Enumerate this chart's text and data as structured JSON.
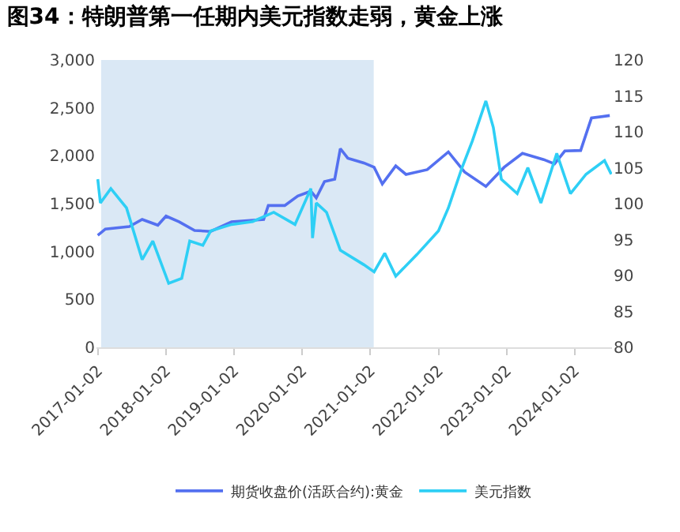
{
  "chart_data": {
    "type": "line",
    "title": "图34：特朗普第一任期内美元指数走弱，黄金上涨",
    "xlim": [
      "2016-12-26",
      "2024-07-20"
    ],
    "xticks": [
      {
        "value": "2017-01-02",
        "label": "2017-01-02"
      },
      {
        "value": "2018-01-02",
        "label": "2018-01-02"
      },
      {
        "value": "2019-01-02",
        "label": "2019-01-02"
      },
      {
        "value": "2020-01-02",
        "label": "2020-01-02"
      },
      {
        "value": "2021-01-02",
        "label": "2021-01-02"
      },
      {
        "value": "2022-01-02",
        "label": "2022-01-02"
      },
      {
        "value": "2023-01-02",
        "label": "2023-01-02"
      },
      {
        "value": "2024-01-02",
        "label": "2024-01-02"
      }
    ],
    "ylim": [
      0,
      3000
    ],
    "yticks": [
      0,
      500,
      {
        "value": 1000,
        "label": "1,000"
      },
      {
        "value": 1500,
        "label": "1,500"
      },
      {
        "value": 2000,
        "label": "2,000"
      },
      {
        "value": 2500,
        "label": "2,500"
      },
      {
        "value": 3000,
        "label": "3,000"
      }
    ],
    "y2lim": [
      80,
      120
    ],
    "y2ticks": [
      80,
      85,
      90,
      95,
      100,
      105,
      110,
      115,
      120
    ],
    "grid": false,
    "legend": "bottom",
    "marker": "none",
    "line_style": "solid",
    "bands": [
      {
        "axis": "x",
        "from": "2017-01-20",
        "to": "2021-01-20",
        "color": "#dae8f5"
      }
    ],
    "series": [
      {
        "name": "期货收盘价(活跃合约):黄金",
        "color": "#5470f0",
        "x": [
          "2017-01-02",
          "2017-02-12",
          "2017-06-20",
          "2017-08-28",
          "2017-11-20",
          "2018-01-03",
          "2018-03-15",
          "2018-06-05",
          "2018-08-30",
          "2018-12-20",
          "2019-06-10",
          "2019-07-05",
          "2019-10-01",
          "2019-12-10",
          "2020-02-18",
          "2020-03-18",
          "2020-05-01",
          "2020-06-25",
          "2020-07-25",
          "2020-09-03",
          "2020-11-28",
          "2021-01-22",
          "2021-03-07",
          "2021-05-18",
          "2021-07-12",
          "2021-11-03",
          "2022-02-24",
          "2022-05-22",
          "2022-09-13",
          "2022-12-20",
          "2023-03-28",
          "2023-07-20",
          "2023-09-16",
          "2023-11-10",
          "2024-02-03",
          "2024-04-01",
          "2024-07-08"
        ],
        "values": [
          1170,
          1235,
          1260,
          1335,
          1275,
          1370,
          1310,
          1220,
          1210,
          1310,
          1335,
          1480,
          1480,
          1580,
          1630,
          1560,
          1730,
          1755,
          2075,
          1975,
          1925,
          1880,
          1705,
          1895,
          1805,
          1855,
          2040,
          1830,
          1680,
          1880,
          2025,
          1960,
          1915,
          2050,
          2055,
          2395,
          2420
        ]
      },
      {
        "name": "美元指数",
        "color": "#2ecff5",
        "axis": "y2",
        "x": [
          "2017-01-02",
          "2017-01-16",
          "2017-03-13",
          "2017-06-05",
          "2017-08-28",
          "2017-10-24",
          "2018-01-17",
          "2018-03-28",
          "2018-05-10",
          "2018-07-19",
          "2018-08-30",
          "2018-12-20",
          "2019-04-12",
          "2019-08-03",
          "2019-11-25",
          "2020-02-18",
          "2020-02-27",
          "2020-03-18",
          "2020-05-12",
          "2020-07-25",
          "2020-11-28",
          "2021-01-22",
          "2021-03-20",
          "2021-05-18",
          "2021-09-08",
          "2022-01-02",
          "2022-02-24",
          "2022-05-08",
          "2022-07-02",
          "2022-09-13",
          "2022-10-23",
          "2022-12-05",
          "2023-02-28",
          "2023-04-26",
          "2023-07-05",
          "2023-09-28",
          "2023-12-10",
          "2024-03-03",
          "2024-06-10",
          "2024-07-16"
        ],
        "values": [
          103.4,
          100.1,
          102.1,
          99.4,
          92.2,
          94.8,
          88.9,
          89.6,
          94.8,
          94.2,
          96.2,
          97.1,
          97.5,
          98.8,
          97.1,
          102.1,
          95.2,
          100.1,
          98.8,
          93.5,
          91.5,
          90.5,
          93.1,
          89.9,
          92.9,
          96.2,
          99.4,
          105.0,
          108.7,
          114.3,
          110.6,
          103.4,
          101.4,
          105.0,
          100.1,
          107.0,
          101.4,
          104.1,
          106.0,
          104.1
        ]
      }
    ]
  }
}
